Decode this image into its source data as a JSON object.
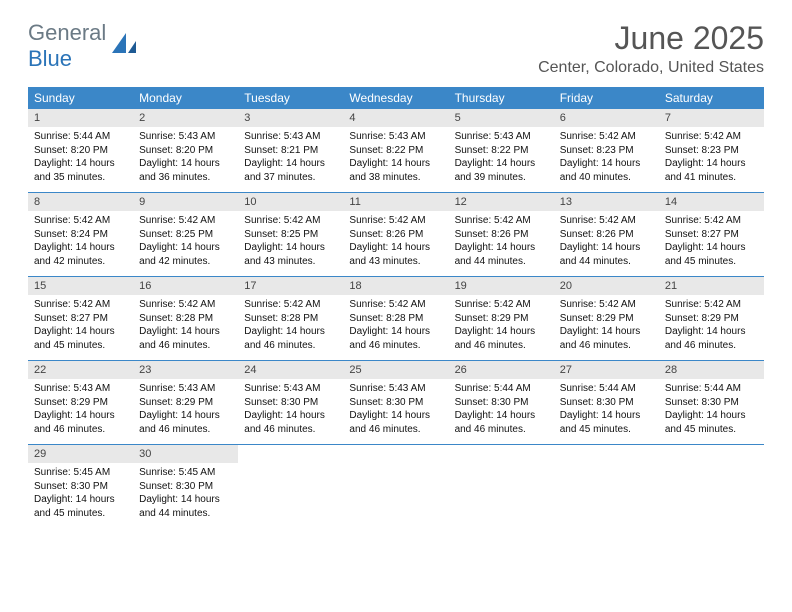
{
  "logo": {
    "general": "General",
    "blue": "Blue",
    "icon_color": "#2b74b8"
  },
  "title": "June 2025",
  "location": "Center, Colorado, United States",
  "colors": {
    "header_bg": "#3b87c8",
    "header_text": "#ffffff",
    "daynum_bg": "#e8e8e8",
    "sep": "#3b87c8"
  },
  "typography": {
    "title_fontsize": 32,
    "location_fontsize": 16,
    "dow_fontsize": 12,
    "daynum_fontsize": 11,
    "body_fontsize": 10
  },
  "days_of_week": [
    "Sunday",
    "Monday",
    "Tuesday",
    "Wednesday",
    "Thursday",
    "Friday",
    "Saturday"
  ],
  "weeks": [
    [
      {
        "n": "1",
        "sr": "Sunrise: 5:44 AM",
        "ss": "Sunset: 8:20 PM",
        "d1": "Daylight: 14 hours",
        "d2": "and 35 minutes."
      },
      {
        "n": "2",
        "sr": "Sunrise: 5:43 AM",
        "ss": "Sunset: 8:20 PM",
        "d1": "Daylight: 14 hours",
        "d2": "and 36 minutes."
      },
      {
        "n": "3",
        "sr": "Sunrise: 5:43 AM",
        "ss": "Sunset: 8:21 PM",
        "d1": "Daylight: 14 hours",
        "d2": "and 37 minutes."
      },
      {
        "n": "4",
        "sr": "Sunrise: 5:43 AM",
        "ss": "Sunset: 8:22 PM",
        "d1": "Daylight: 14 hours",
        "d2": "and 38 minutes."
      },
      {
        "n": "5",
        "sr": "Sunrise: 5:43 AM",
        "ss": "Sunset: 8:22 PM",
        "d1": "Daylight: 14 hours",
        "d2": "and 39 minutes."
      },
      {
        "n": "6",
        "sr": "Sunrise: 5:42 AM",
        "ss": "Sunset: 8:23 PM",
        "d1": "Daylight: 14 hours",
        "d2": "and 40 minutes."
      },
      {
        "n": "7",
        "sr": "Sunrise: 5:42 AM",
        "ss": "Sunset: 8:23 PM",
        "d1": "Daylight: 14 hours",
        "d2": "and 41 minutes."
      }
    ],
    [
      {
        "n": "8",
        "sr": "Sunrise: 5:42 AM",
        "ss": "Sunset: 8:24 PM",
        "d1": "Daylight: 14 hours",
        "d2": "and 42 minutes."
      },
      {
        "n": "9",
        "sr": "Sunrise: 5:42 AM",
        "ss": "Sunset: 8:25 PM",
        "d1": "Daylight: 14 hours",
        "d2": "and 42 minutes."
      },
      {
        "n": "10",
        "sr": "Sunrise: 5:42 AM",
        "ss": "Sunset: 8:25 PM",
        "d1": "Daylight: 14 hours",
        "d2": "and 43 minutes."
      },
      {
        "n": "11",
        "sr": "Sunrise: 5:42 AM",
        "ss": "Sunset: 8:26 PM",
        "d1": "Daylight: 14 hours",
        "d2": "and 43 minutes."
      },
      {
        "n": "12",
        "sr": "Sunrise: 5:42 AM",
        "ss": "Sunset: 8:26 PM",
        "d1": "Daylight: 14 hours",
        "d2": "and 44 minutes."
      },
      {
        "n": "13",
        "sr": "Sunrise: 5:42 AM",
        "ss": "Sunset: 8:26 PM",
        "d1": "Daylight: 14 hours",
        "d2": "and 44 minutes."
      },
      {
        "n": "14",
        "sr": "Sunrise: 5:42 AM",
        "ss": "Sunset: 8:27 PM",
        "d1": "Daylight: 14 hours",
        "d2": "and 45 minutes."
      }
    ],
    [
      {
        "n": "15",
        "sr": "Sunrise: 5:42 AM",
        "ss": "Sunset: 8:27 PM",
        "d1": "Daylight: 14 hours",
        "d2": "and 45 minutes."
      },
      {
        "n": "16",
        "sr": "Sunrise: 5:42 AM",
        "ss": "Sunset: 8:28 PM",
        "d1": "Daylight: 14 hours",
        "d2": "and 46 minutes."
      },
      {
        "n": "17",
        "sr": "Sunrise: 5:42 AM",
        "ss": "Sunset: 8:28 PM",
        "d1": "Daylight: 14 hours",
        "d2": "and 46 minutes."
      },
      {
        "n": "18",
        "sr": "Sunrise: 5:42 AM",
        "ss": "Sunset: 8:28 PM",
        "d1": "Daylight: 14 hours",
        "d2": "and 46 minutes."
      },
      {
        "n": "19",
        "sr": "Sunrise: 5:42 AM",
        "ss": "Sunset: 8:29 PM",
        "d1": "Daylight: 14 hours",
        "d2": "and 46 minutes."
      },
      {
        "n": "20",
        "sr": "Sunrise: 5:42 AM",
        "ss": "Sunset: 8:29 PM",
        "d1": "Daylight: 14 hours",
        "d2": "and 46 minutes."
      },
      {
        "n": "21",
        "sr": "Sunrise: 5:42 AM",
        "ss": "Sunset: 8:29 PM",
        "d1": "Daylight: 14 hours",
        "d2": "and 46 minutes."
      }
    ],
    [
      {
        "n": "22",
        "sr": "Sunrise: 5:43 AM",
        "ss": "Sunset: 8:29 PM",
        "d1": "Daylight: 14 hours",
        "d2": "and 46 minutes."
      },
      {
        "n": "23",
        "sr": "Sunrise: 5:43 AM",
        "ss": "Sunset: 8:29 PM",
        "d1": "Daylight: 14 hours",
        "d2": "and 46 minutes."
      },
      {
        "n": "24",
        "sr": "Sunrise: 5:43 AM",
        "ss": "Sunset: 8:30 PM",
        "d1": "Daylight: 14 hours",
        "d2": "and 46 minutes."
      },
      {
        "n": "25",
        "sr": "Sunrise: 5:43 AM",
        "ss": "Sunset: 8:30 PM",
        "d1": "Daylight: 14 hours",
        "d2": "and 46 minutes."
      },
      {
        "n": "26",
        "sr": "Sunrise: 5:44 AM",
        "ss": "Sunset: 8:30 PM",
        "d1": "Daylight: 14 hours",
        "d2": "and 46 minutes."
      },
      {
        "n": "27",
        "sr": "Sunrise: 5:44 AM",
        "ss": "Sunset: 8:30 PM",
        "d1": "Daylight: 14 hours",
        "d2": "and 45 minutes."
      },
      {
        "n": "28",
        "sr": "Sunrise: 5:44 AM",
        "ss": "Sunset: 8:30 PM",
        "d1": "Daylight: 14 hours",
        "d2": "and 45 minutes."
      }
    ],
    [
      {
        "n": "29",
        "sr": "Sunrise: 5:45 AM",
        "ss": "Sunset: 8:30 PM",
        "d1": "Daylight: 14 hours",
        "d2": "and 45 minutes."
      },
      {
        "n": "30",
        "sr": "Sunrise: 5:45 AM",
        "ss": "Sunset: 8:30 PM",
        "d1": "Daylight: 14 hours",
        "d2": "and 44 minutes."
      },
      null,
      null,
      null,
      null,
      null
    ]
  ]
}
